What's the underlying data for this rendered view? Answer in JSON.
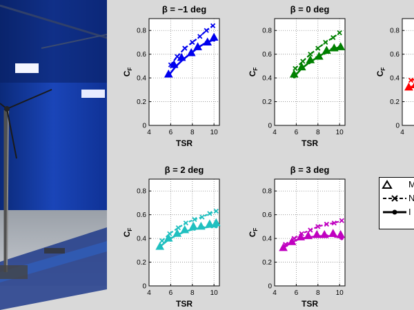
{
  "chart_data": [
    {
      "type": "scatter",
      "title": "β = −1 deg",
      "xlabel": "TSR",
      "ylabel": "C_F",
      "xlim": [
        4,
        10.5
      ],
      "ylim": [
        0,
        0.9
      ],
      "xticks": [
        4,
        6,
        8,
        10
      ],
      "yticks": [
        0,
        0.2,
        0.4,
        0.6,
        0.8
      ],
      "color": "#0000ee",
      "series": [
        {
          "name": "M",
          "x": [
            5.8,
            6.3,
            7.0,
            7.9,
            8.5,
            9.4,
            10.0
          ],
          "y": [
            0.43,
            0.51,
            0.57,
            0.61,
            0.66,
            0.7,
            0.74
          ]
        },
        {
          "name": "N",
          "x": [
            6.0,
            6.6,
            7.3,
            8.0,
            8.7,
            9.3,
            9.9
          ],
          "y": [
            0.51,
            0.58,
            0.65,
            0.7,
            0.75,
            0.8,
            0.84
          ]
        },
        {
          "name": "I",
          "x": [
            5.8,
            6.5,
            7.2,
            7.9,
            8.6,
            9.3,
            10.0
          ],
          "y": [
            0.42,
            0.5,
            0.56,
            0.61,
            0.66,
            0.7,
            0.72
          ]
        }
      ]
    },
    {
      "type": "scatter",
      "title": "β = 0 deg",
      "xlabel": "TSR",
      "ylabel": "C_F",
      "xlim": [
        4,
        10.5
      ],
      "ylim": [
        0,
        0.9
      ],
      "xticks": [
        4,
        6,
        8,
        10
      ],
      "yticks": [
        0,
        0.2,
        0.4,
        0.6,
        0.8
      ],
      "color": "#008000",
      "series": [
        {
          "name": "M",
          "x": [
            5.8,
            6.5,
            7.3,
            8.1,
            8.8,
            9.5,
            10.1
          ],
          "y": [
            0.43,
            0.49,
            0.55,
            0.58,
            0.63,
            0.65,
            0.66
          ]
        },
        {
          "name": "N",
          "x": [
            5.9,
            6.6,
            7.3,
            8.0,
            8.7,
            9.4,
            10.0
          ],
          "y": [
            0.48,
            0.54,
            0.6,
            0.65,
            0.7,
            0.74,
            0.78
          ]
        },
        {
          "name": "I",
          "x": [
            5.8,
            6.5,
            7.2,
            7.9,
            8.6,
            9.3,
            10.0
          ],
          "y": [
            0.41,
            0.48,
            0.53,
            0.57,
            0.61,
            0.64,
            0.66
          ]
        }
      ]
    },
    {
      "type": "scatter",
      "title": "",
      "xlabel": "",
      "ylabel": "C_F",
      "xlim": [
        4,
        10.5
      ],
      "ylim": [
        0,
        0.9
      ],
      "xticks": [
        4
      ],
      "yticks": [
        0,
        0.2,
        0.4,
        0.6,
        0.8
      ],
      "color": "#ff0000",
      "series": [
        {
          "name": "M",
          "x": [
            4.6,
            5.2
          ],
          "y": [
            0.32,
            0.34
          ]
        },
        {
          "name": "N",
          "x": [
            4.8,
            5.3
          ],
          "y": [
            0.38,
            0.39
          ]
        },
        {
          "name": "I",
          "x": [
            4.5,
            5.2
          ],
          "y": [
            0.31,
            0.34
          ]
        }
      ]
    },
    {
      "type": "scatter",
      "title": "β = 2 deg",
      "xlabel": "TSR",
      "ylabel": "C_F",
      "xlim": [
        4,
        10.5
      ],
      "ylim": [
        0,
        0.9
      ],
      "xticks": [
        4,
        6,
        8,
        10
      ],
      "yticks": [
        0,
        0.2,
        0.4,
        0.6,
        0.8
      ],
      "color": "#20c0c0",
      "series": [
        {
          "name": "M",
          "x": [
            5.0,
            5.8,
            6.6,
            7.3,
            8.1,
            8.8,
            9.6,
            10.2
          ],
          "y": [
            0.33,
            0.4,
            0.44,
            0.47,
            0.5,
            0.5,
            0.52,
            0.53
          ]
        },
        {
          "name": "N",
          "x": [
            5.2,
            5.9,
            6.7,
            7.4,
            8.2,
            8.9,
            9.6,
            10.2
          ],
          "y": [
            0.38,
            0.44,
            0.49,
            0.53,
            0.56,
            0.58,
            0.61,
            0.63
          ]
        },
        {
          "name": "I",
          "x": [
            5.0,
            5.8,
            6.6,
            7.4,
            8.2,
            9.0,
            9.8,
            10.2
          ],
          "y": [
            0.33,
            0.39,
            0.43,
            0.46,
            0.48,
            0.49,
            0.5,
            0.5
          ]
        }
      ]
    },
    {
      "type": "scatter",
      "title": "β = 3 deg",
      "xlabel": "TSR",
      "ylabel": "C_F",
      "xlim": [
        4,
        10.5
      ],
      "ylim": [
        0,
        0.9
      ],
      "xticks": [
        4,
        6,
        8,
        10
      ],
      "yticks": [
        0,
        0.2,
        0.4,
        0.6,
        0.8
      ],
      "color": "#c000c0",
      "series": [
        {
          "name": "M",
          "x": [
            4.8,
            5.6,
            6.4,
            7.1,
            7.9,
            8.6,
            9.4,
            10.1
          ],
          "y": [
            0.32,
            0.37,
            0.41,
            0.42,
            0.43,
            0.43,
            0.44,
            0.43
          ]
        },
        {
          "name": "N",
          "x": [
            5.0,
            5.8,
            6.5,
            7.3,
            8.0,
            8.8,
            9.5,
            10.2
          ],
          "y": [
            0.35,
            0.4,
            0.44,
            0.47,
            0.5,
            0.52,
            0.53,
            0.55
          ]
        },
        {
          "name": "I",
          "x": [
            4.8,
            5.6,
            6.4,
            7.2,
            8.0,
            8.8,
            9.6,
            10.2
          ],
          "y": [
            0.32,
            0.37,
            0.4,
            0.41,
            0.42,
            0.42,
            0.42,
            0.4
          ]
        }
      ]
    }
  ],
  "legend": {
    "items": [
      {
        "label": "M",
        "style": "triangle"
      },
      {
        "label": "N",
        "style": "dashed-x"
      },
      {
        "label": "I",
        "style": "solid-dot"
      }
    ]
  }
}
